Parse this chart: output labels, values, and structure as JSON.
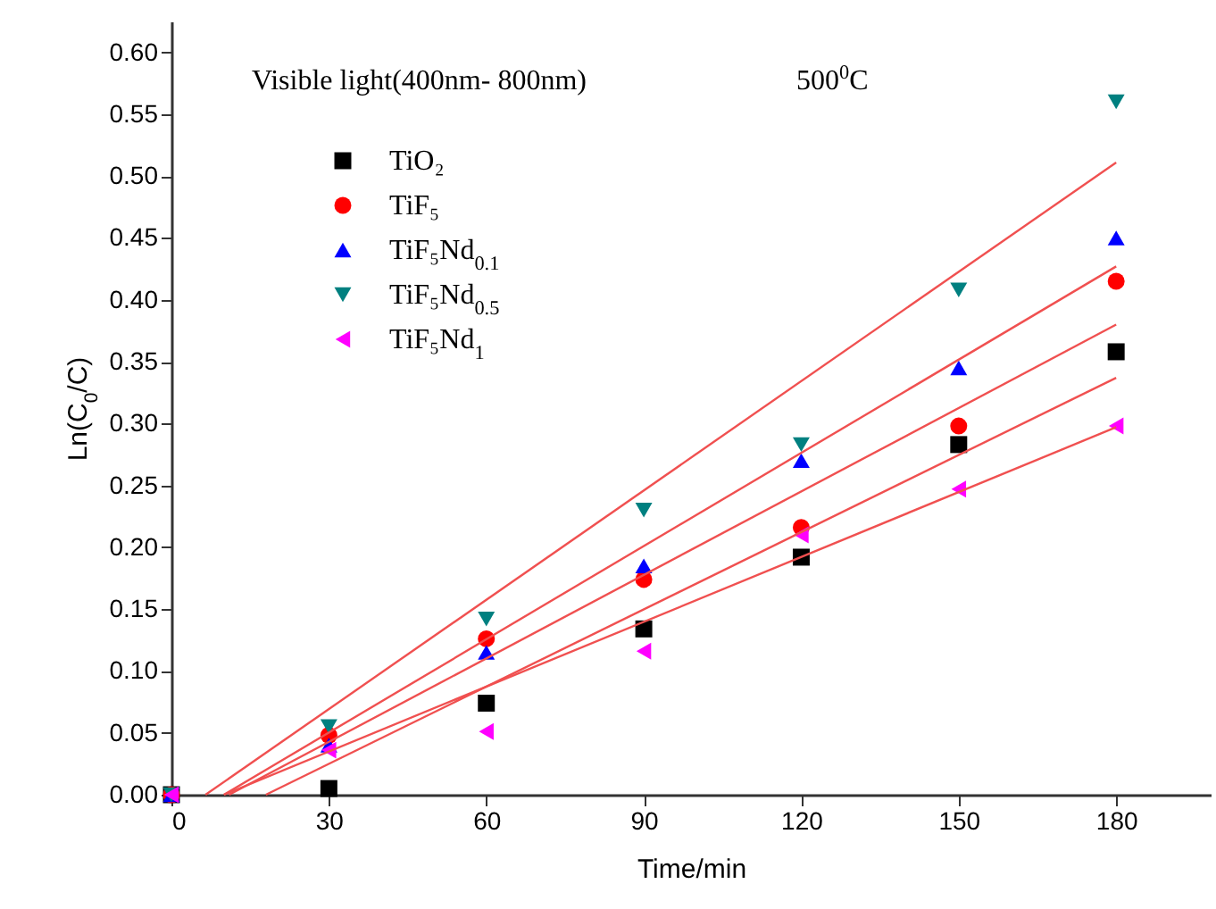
{
  "chart_data": {
    "type": "scatter",
    "xlabel": "Time/min",
    "ylabel": "Ln(C$_{0}$/C)",
    "annotations": [
      "Visible light(400nm- 800nm)",
      "500$^{0}$C"
    ],
    "x": [
      0,
      30,
      60,
      90,
      120,
      150,
      180
    ],
    "xlim": [
      0,
      198
    ],
    "xticks": [
      0,
      30,
      60,
      90,
      120,
      150,
      180
    ],
    "ylim": [
      0,
      0.625
    ],
    "yticks": [
      {
        "value": 0,
        "label": "0.00"
      },
      {
        "value": 0.05,
        "label": "0.05"
      },
      {
        "value": 0.1,
        "label": "0.10"
      },
      {
        "value": 0.15,
        "label": "0.15"
      },
      {
        "value": 0.2,
        "label": "0.20"
      },
      {
        "value": 0.25,
        "label": "0.25"
      },
      {
        "value": 0.3,
        "label": "0.30"
      },
      {
        "value": 0.35,
        "label": "0.35"
      },
      {
        "value": 0.4,
        "label": "0.40"
      },
      {
        "value": 0.45,
        "label": "0.45"
      },
      {
        "value": 0.5,
        "label": "0.50"
      },
      {
        "value": 0.55,
        "label": "0.55"
      },
      {
        "value": 0.6,
        "label": "0.60"
      }
    ],
    "grid": false,
    "legend": "top left",
    "series": [
      {
        "name": "TiO₂",
        "color": "#000000",
        "marker": "square",
        "values": [
          0,
          0.005,
          0.074,
          0.134,
          0.192,
          0.283,
          0.358
        ]
      },
      {
        "name": "TiF₅",
        "color": "#ff0000",
        "marker": "circle",
        "values": [
          0,
          0.048,
          0.126,
          0.174,
          0.216,
          0.298,
          0.415
        ]
      },
      {
        "name": "TiF₅Nd$_{0.1}$",
        "color": "#0000ff",
        "marker": "triangle-up",
        "values": [
          0,
          0.04,
          0.115,
          0.185,
          0.27,
          0.345,
          0.45
        ]
      },
      {
        "name": "TiF₅Nd$_{0.5}$",
        "color": "#008080",
        "marker": "triangle-down",
        "values": [
          0,
          0.055,
          0.142,
          0.23,
          0.283,
          0.408,
          0.56
        ]
      },
      {
        "name": "TiF₅Nd$_{1}$",
        "color": "#ff00ff",
        "marker": "triangle-left",
        "values": [
          0,
          0.036,
          0.051,
          0.116,
          0.21,
          0.247,
          0.298
        ]
      },
      {
        "type": "line",
        "color": "#f05050",
        "x": [
          18,
          180
        ],
        "values": [
          0,
          0.337
        ]
      },
      {
        "type": "line",
        "color": "#f05050",
        "x": [
          11,
          180
        ],
        "values": [
          0,
          0.38
        ]
      },
      {
        "type": "line",
        "color": "#f05050",
        "x": [
          10,
          180
        ],
        "values": [
          0,
          0.427
        ]
      },
      {
        "type": "line",
        "color": "#f05050",
        "x": [
          6.5,
          180
        ],
        "values": [
          0,
          0.511
        ]
      },
      {
        "type": "line",
        "color": "#f05050",
        "x": [
          10,
          180
        ],
        "values": [
          0,
          0.297
        ]
      }
    ]
  }
}
